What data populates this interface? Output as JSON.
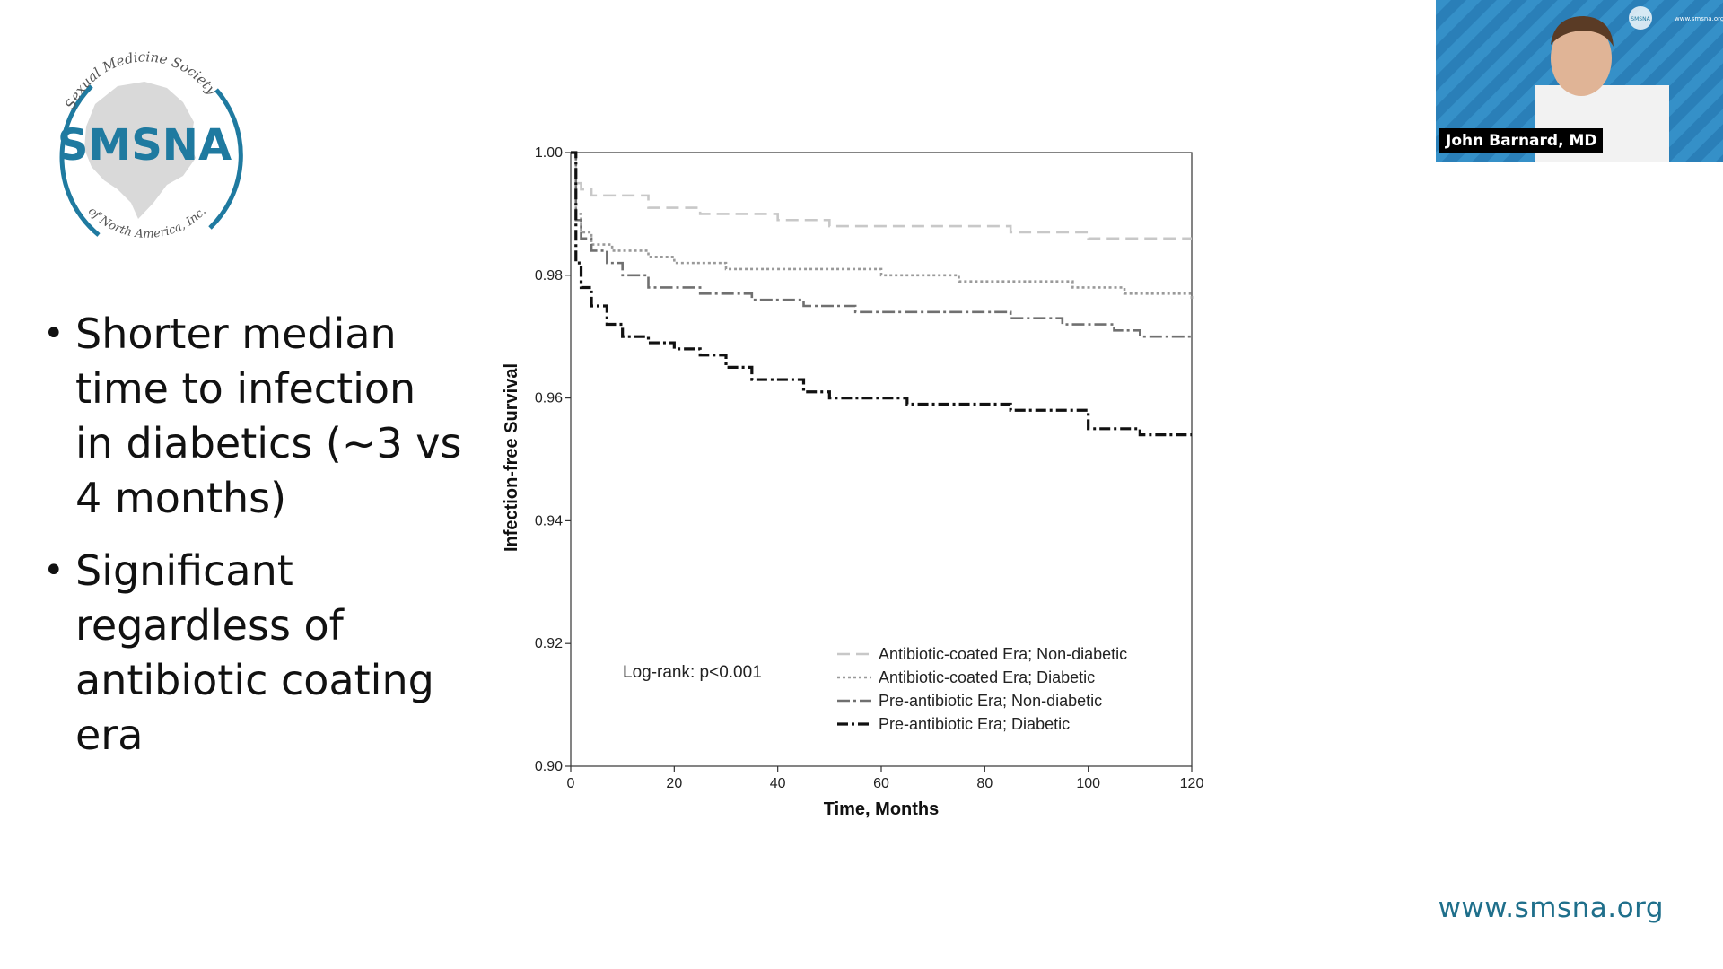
{
  "logo": {
    "arc_top": "Sexual Medicine Society",
    "name": "SMSNA",
    "arc_bottom": "of North America, Inc.",
    "color": "#1f7aa0"
  },
  "bullets": [
    "Shorter median time to infection in diabetics (~3 vs 4 months)",
    "Significant regardless of antibiotic coating era"
  ],
  "chart_data": {
    "type": "line",
    "xlabel": "Time, Months",
    "ylabel": "Infection-free Survival",
    "xlim": [
      0,
      120
    ],
    "ylim": [
      0.9,
      1.0
    ],
    "x_ticks": [
      0,
      20,
      40,
      60,
      80,
      100,
      120
    ],
    "y_ticks": [
      "0.90",
      "0.92",
      "0.94",
      "0.96",
      "0.98",
      "1.00"
    ],
    "annotation": "Log-rank: p<0.001",
    "legend_position": "bottom-right",
    "series": [
      {
        "name": "Antibiotic-coated Era; Non-diabetic",
        "color": "#c8c8c8",
        "dash": "14,7",
        "points": [
          [
            0,
            1.0
          ],
          [
            1,
            0.995
          ],
          [
            2,
            0.994
          ],
          [
            4,
            0.993
          ],
          [
            8,
            0.993
          ],
          [
            15,
            0.991
          ],
          [
            25,
            0.99
          ],
          [
            40,
            0.989
          ],
          [
            50,
            0.988
          ],
          [
            60,
            0.988
          ],
          [
            80,
            0.988
          ],
          [
            85,
            0.987
          ],
          [
            95,
            0.987
          ],
          [
            100,
            0.986
          ],
          [
            120,
            0.986
          ]
        ]
      },
      {
        "name": "Antibiotic-coated Era; Diabetic",
        "color": "#9a9a9a",
        "dash": "3,3",
        "points": [
          [
            0,
            1.0
          ],
          [
            1,
            0.99
          ],
          [
            2,
            0.987
          ],
          [
            4,
            0.985
          ],
          [
            8,
            0.984
          ],
          [
            15,
            0.983
          ],
          [
            20,
            0.982
          ],
          [
            30,
            0.981
          ],
          [
            40,
            0.981
          ],
          [
            55,
            0.981
          ],
          [
            60,
            0.98
          ],
          [
            68,
            0.98
          ],
          [
            75,
            0.979
          ],
          [
            95,
            0.979
          ],
          [
            97,
            0.978
          ],
          [
            105,
            0.978
          ],
          [
            107,
            0.977
          ],
          [
            120,
            0.976
          ]
        ]
      },
      {
        "name": "Pre-antibiotic Era; Non-diabetic",
        "color": "#707070",
        "dash": "14,4,3,4",
        "points": [
          [
            0,
            1.0
          ],
          [
            1,
            0.989
          ],
          [
            2,
            0.986
          ],
          [
            4,
            0.984
          ],
          [
            7,
            0.982
          ],
          [
            10,
            0.98
          ],
          [
            15,
            0.978
          ],
          [
            25,
            0.977
          ],
          [
            35,
            0.976
          ],
          [
            45,
            0.975
          ],
          [
            55,
            0.974
          ],
          [
            65,
            0.974
          ],
          [
            75,
            0.974
          ],
          [
            85,
            0.973
          ],
          [
            95,
            0.972
          ],
          [
            105,
            0.971
          ],
          [
            110,
            0.97
          ],
          [
            120,
            0.97
          ]
        ]
      },
      {
        "name": "Pre-antibiotic Era; Diabetic",
        "color": "#111111",
        "dash": "12,4,3,4",
        "points": [
          [
            0,
            1.0
          ],
          [
            1,
            0.982
          ],
          [
            2,
            0.978
          ],
          [
            4,
            0.975
          ],
          [
            7,
            0.972
          ],
          [
            10,
            0.97
          ],
          [
            15,
            0.969
          ],
          [
            20,
            0.968
          ],
          [
            25,
            0.967
          ],
          [
            30,
            0.965
          ],
          [
            35,
            0.963
          ],
          [
            40,
            0.963
          ],
          [
            45,
            0.961
          ],
          [
            50,
            0.96
          ],
          [
            60,
            0.96
          ],
          [
            65,
            0.959
          ],
          [
            80,
            0.959
          ],
          [
            85,
            0.958
          ],
          [
            95,
            0.958
          ],
          [
            100,
            0.955
          ],
          [
            105,
            0.955
          ],
          [
            110,
            0.954
          ],
          [
            120,
            0.954
          ]
        ]
      }
    ]
  },
  "video": {
    "speaker": "John Barnard, MD",
    "bg_color": "#2a7fb8",
    "watermark_logo": "SMSNA",
    "watermark_site": "www.smsna.org"
  },
  "footer": {
    "website": "www.smsna.org",
    "color": "#1f6f8b"
  }
}
